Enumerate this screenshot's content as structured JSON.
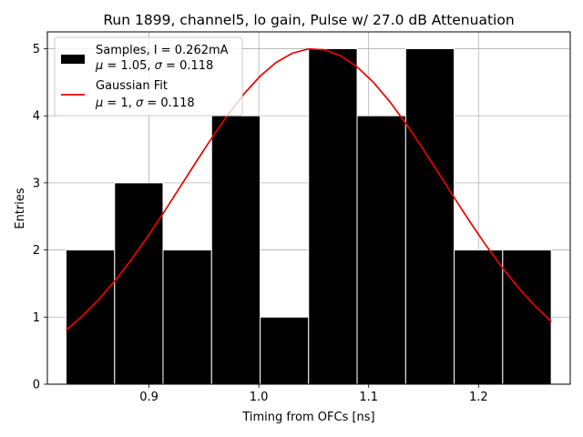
{
  "chart_data": {
    "type": "bar",
    "title": "Run 1899, channel5, lo gain, Pulse w/ 27.0 dB Attenuation",
    "xlabel": "Timing from OFCs [ns]",
    "ylabel": "Entries",
    "xlim": [
      0.8075,
      1.2835
    ],
    "ylim": [
      0,
      5.25
    ],
    "grid": true,
    "legend_placement": "top-left",
    "xticks": [
      0.9,
      1.0,
      1.1,
      1.2
    ],
    "xtick_labels": [
      "0.9",
      "1.0",
      "1.1",
      "1.2"
    ],
    "yticks": [
      0,
      1,
      2,
      3,
      4,
      5
    ],
    "ytick_labels": [
      "0",
      "1",
      "2",
      "3",
      "4",
      "5"
    ],
    "histogram": {
      "name": "Samples, I = 0.262mA",
      "name_line2": "$\\mu$ = 1.05, $\\sigma$ = 0.118",
      "color": "#000000",
      "bin_edges": [
        0.8245,
        0.8687,
        0.9128,
        0.957,
        1.0012,
        1.0453,
        1.0895,
        1.1337,
        1.1778,
        1.222,
        1.2662
      ],
      "counts": [
        2,
        3,
        2,
        4,
        1,
        5,
        4,
        5,
        2,
        2
      ]
    },
    "fit": {
      "name": "Gaussian Fit",
      "name_line2": "$\\mu$ = 1, $\\sigma$ = 0.118",
      "color": "#ee0000",
      "amplitude": 5.0,
      "mean": 1.05,
      "sigma": 0.118,
      "x_range": [
        0.8245,
        1.2662
      ]
    }
  }
}
